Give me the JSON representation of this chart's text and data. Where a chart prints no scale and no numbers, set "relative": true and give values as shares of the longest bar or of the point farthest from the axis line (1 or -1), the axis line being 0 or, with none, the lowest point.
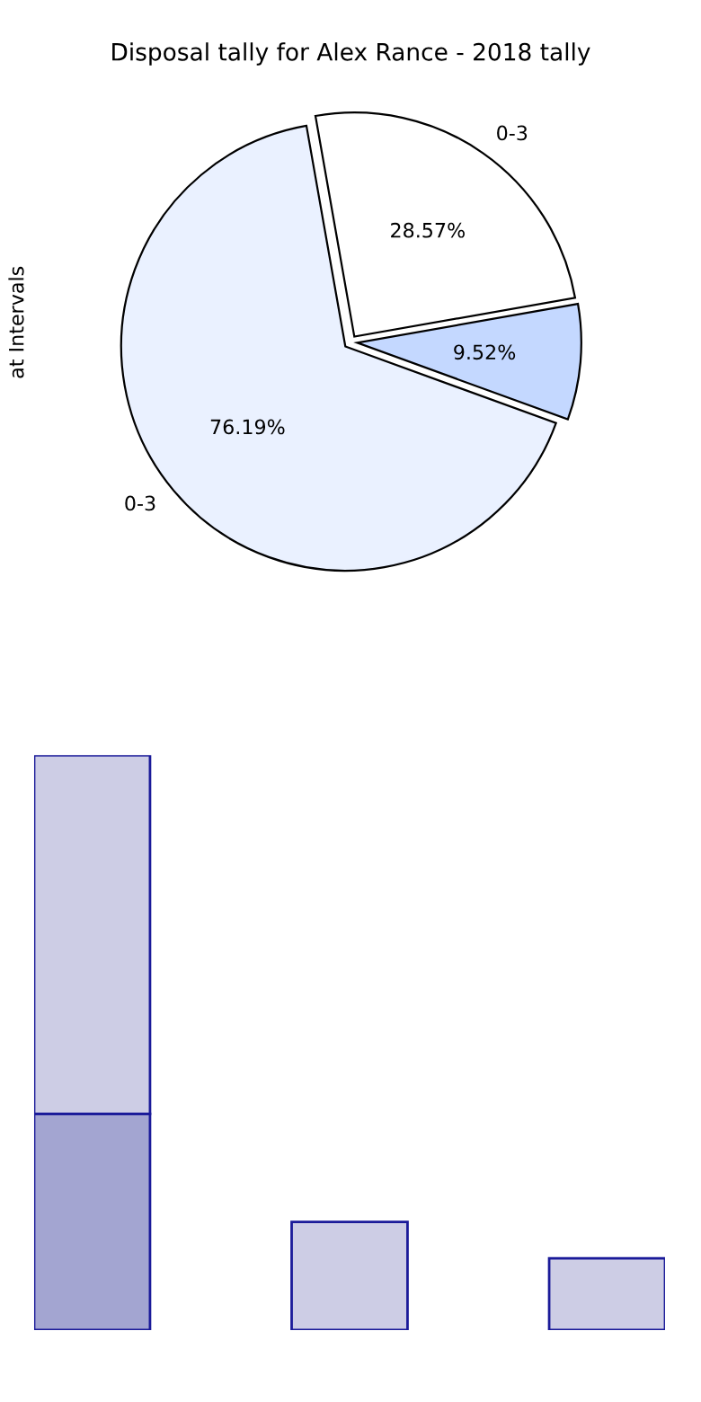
{
  "chart_data": [
    {
      "type": "pie",
      "title": "Disposal tally for Alex Rance - 2018 tally",
      "ylabel": "at Intervals",
      "categories": [
        "0-3",
        null,
        "0-3"
      ],
      "values": [
        28.57,
        9.52,
        76.19
      ],
      "colors": [
        "#ffffff",
        "#c4d8ff",
        "#eaf1ff"
      ],
      "value_labels": [
        "28.57%",
        "9.52%",
        "76.19%"
      ]
    },
    {
      "type": "bar",
      "relative": true,
      "stacked": true,
      "categories": [
        null,
        null,
        null
      ],
      "series": [
        {
          "color": "#a3a5d1",
          "values": [
            0.376,
            null,
            null
          ]
        },
        {
          "color": "#cdcde5",
          "values": [
            0.624,
            0.188,
            0.125
          ]
        }
      ]
    }
  ]
}
